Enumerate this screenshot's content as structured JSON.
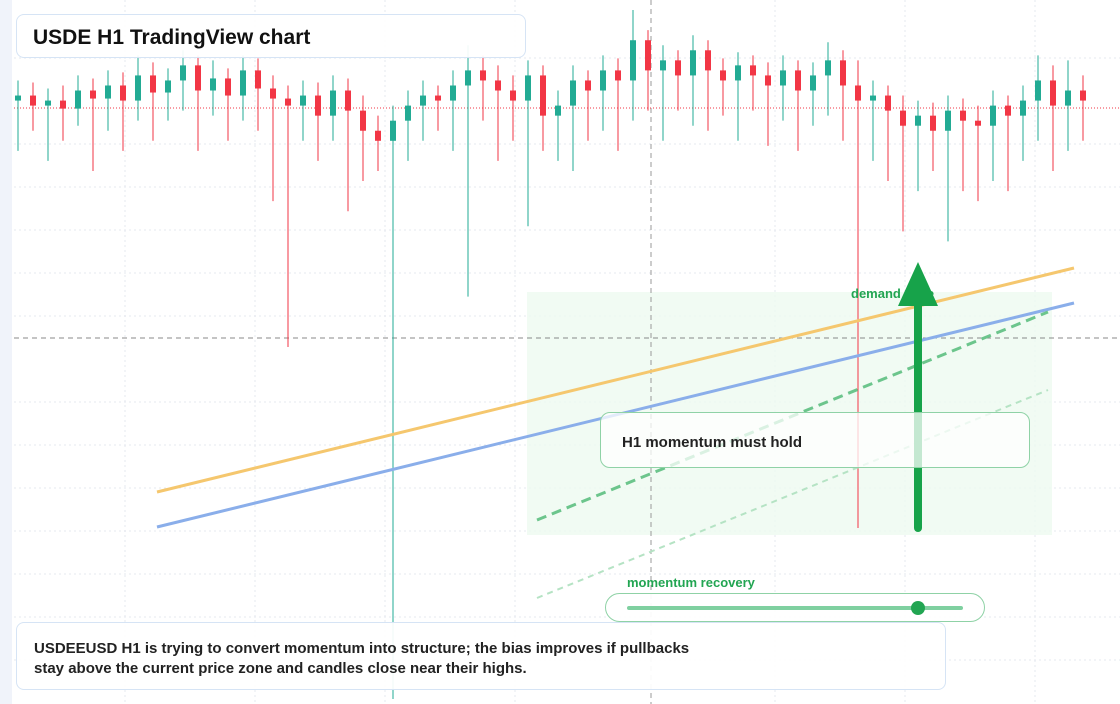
{
  "header": {
    "title": "USDE H1 TradingView chart"
  },
  "annotations": {
    "zone": "demand zone",
    "callout": "H1 momentum must hold",
    "slider_label": "momentum recovery"
  },
  "note": {
    "lines": [
      "USDEEUSD H1 is trying to convert momentum into structure; the bias improves if pullbacks",
      "stay above the current price zone and candles close near their highs."
    ]
  },
  "chart_data": {
    "type": "candlestick",
    "ylim": [
      0,
      7
    ],
    "up_color": "#22ab94",
    "down_color": "#f23645",
    "open": [
      6.0,
      6.05,
      5.95,
      6.0,
      5.92,
      6.1,
      6.02,
      6.15,
      6.0,
      6.25,
      6.08,
      6.2,
      6.35,
      6.1,
      6.22,
      6.05,
      6.3,
      6.12,
      6.02,
      5.95,
      6.05,
      5.85,
      6.1,
      5.9,
      5.7,
      5.6,
      5.8,
      5.95,
      6.05,
      6.0,
      6.15,
      6.3,
      6.2,
      6.1,
      6.0,
      6.25,
      5.85,
      5.95,
      6.2,
      6.1,
      6.3,
      6.2,
      6.6,
      6.3,
      6.4,
      6.25,
      6.5,
      6.3,
      6.2,
      6.35,
      6.25,
      6.15,
      6.3,
      6.1,
      6.25,
      6.4,
      6.15,
      6.0,
      6.05,
      5.9,
      5.75,
      5.85,
      5.7,
      5.9,
      5.8,
      5.75,
      5.95,
      5.85,
      6.0,
      6.2,
      5.95,
      6.1
    ],
    "high": [
      6.2,
      6.18,
      6.12,
      6.15,
      6.25,
      6.22,
      6.3,
      6.28,
      6.45,
      6.38,
      6.32,
      6.5,
      6.45,
      6.4,
      6.32,
      6.45,
      6.42,
      6.25,
      6.15,
      6.2,
      6.18,
      6.25,
      6.22,
      6.05,
      5.85,
      5.95,
      6.1,
      6.2,
      6.15,
      6.3,
      6.55,
      6.45,
      6.35,
      6.25,
      6.4,
      6.35,
      6.1,
      6.35,
      6.3,
      6.45,
      6.42,
      6.9,
      6.7,
      6.55,
      6.5,
      6.65,
      6.6,
      6.42,
      6.48,
      6.45,
      6.38,
      6.45,
      6.4,
      6.38,
      6.58,
      6.5,
      6.4,
      6.2,
      6.15,
      6.05,
      6.0,
      5.98,
      6.05,
      6.02,
      5.95,
      6.1,
      6.05,
      6.15,
      6.45,
      6.35,
      6.4,
      6.25
    ],
    "low": [
      5.5,
      5.7,
      5.4,
      5.6,
      5.75,
      5.3,
      5.7,
      5.5,
      5.8,
      5.6,
      5.8,
      5.9,
      5.5,
      5.85,
      5.6,
      5.8,
      5.7,
      5.0,
      3.55,
      5.6,
      5.4,
      5.6,
      4.9,
      5.2,
      5.3,
      0.05,
      5.4,
      5.6,
      5.7,
      5.5,
      4.05,
      5.8,
      5.4,
      5.6,
      4.75,
      5.5,
      5.4,
      5.3,
      5.6,
      5.7,
      5.5,
      5.8,
      5.9,
      5.6,
      5.9,
      5.75,
      5.7,
      5.85,
      5.6,
      5.9,
      5.55,
      5.8,
      5.5,
      5.75,
      5.85,
      5.6,
      1.75,
      5.4,
      5.2,
      4.7,
      5.1,
      5.3,
      4.6,
      5.1,
      5.0,
      5.2,
      5.1,
      5.4,
      5.6,
      5.3,
      5.5,
      5.6
    ],
    "close": [
      6.05,
      5.95,
      6.0,
      5.92,
      6.1,
      6.02,
      6.15,
      6.0,
      6.25,
      6.08,
      6.2,
      6.35,
      6.1,
      6.22,
      6.05,
      6.3,
      6.12,
      6.02,
      5.95,
      6.05,
      5.85,
      6.1,
      5.9,
      5.7,
      5.6,
      5.8,
      5.95,
      6.05,
      6.0,
      6.15,
      6.3,
      6.2,
      6.1,
      6.0,
      6.25,
      5.85,
      5.95,
      6.2,
      6.1,
      6.3,
      6.2,
      6.6,
      6.3,
      6.4,
      6.25,
      6.5,
      6.3,
      6.2,
      6.35,
      6.25,
      6.15,
      6.3,
      6.1,
      6.25,
      6.4,
      6.15,
      6.0,
      6.05,
      5.9,
      5.75,
      5.85,
      5.7,
      5.9,
      5.8,
      5.75,
      5.95,
      5.85,
      6.0,
      6.2,
      5.95,
      6.1,
      6.0
    ]
  }
}
